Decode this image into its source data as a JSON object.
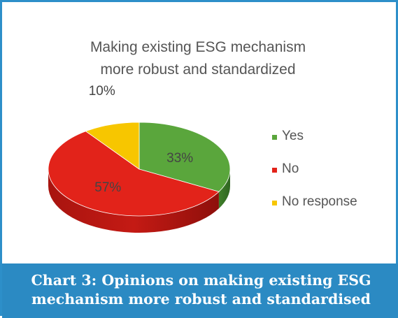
{
  "chart_data": {
    "type": "pie",
    "title_lines": [
      "Making existing ESG mechanism",
      "more robust and standardized"
    ],
    "slices": [
      {
        "label": "Yes",
        "value": 33,
        "display": "33%",
        "color": "#5aa63c"
      },
      {
        "label": "No",
        "value": 57,
        "display": "57%",
        "color": "#e2231a"
      },
      {
        "label": "No response",
        "value": 10,
        "display": "10%",
        "color": "#f7c600"
      }
    ],
    "legend_position": "right",
    "style": "3d"
  },
  "caption": {
    "line1": "Chart 3: Opinions on making existing ESG",
    "line2": "mechanism more robust and standardised"
  }
}
